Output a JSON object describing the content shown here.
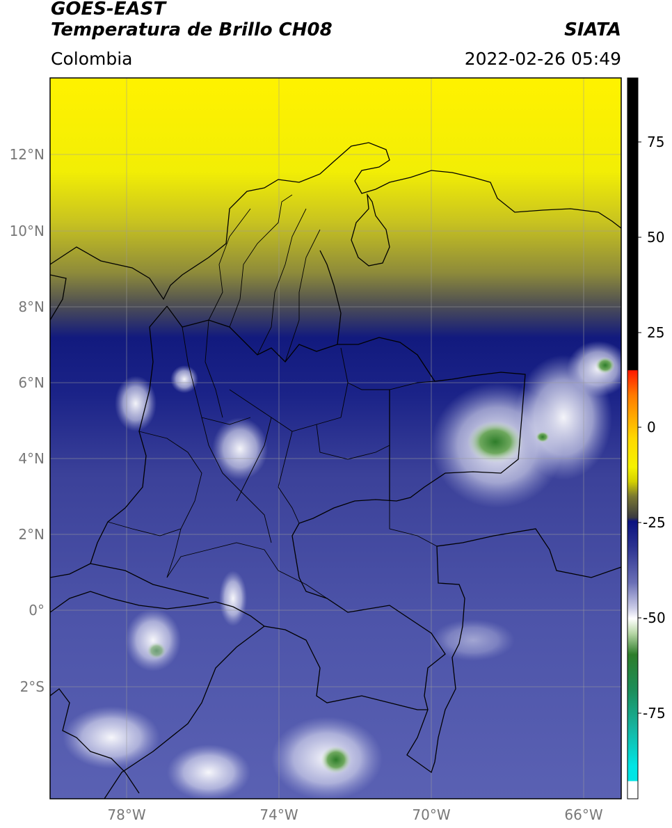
{
  "header": {
    "satellite": "GOES-EAST",
    "product": "Temperatura de Brillo CH08",
    "organization": "SIATA",
    "region": "Colombia",
    "datetime": "2022-02-26 05:49"
  },
  "map": {
    "lon_range": [
      -79.8,
      -64.9
    ],
    "lat_range": [
      -4.9,
      14.1
    ],
    "lat_ticks": [
      {
        "value": 12,
        "label": "12°N"
      },
      {
        "value": 10,
        "label": "10°N"
      },
      {
        "value": 8,
        "label": "8°N"
      },
      {
        "value": 6,
        "label": "6°N"
      },
      {
        "value": 4,
        "label": "4°N"
      },
      {
        "value": 2,
        "label": "2°N"
      },
      {
        "value": 0,
        "label": "0°"
      },
      {
        "value": -2,
        "label": "2°S"
      }
    ],
    "lon_ticks": [
      {
        "value": -78,
        "label": "78°W"
      },
      {
        "value": -74,
        "label": "74°W"
      },
      {
        "value": -70,
        "label": "70°W"
      },
      {
        "value": -66,
        "label": "66°W"
      }
    ],
    "grid": true
  },
  "colorbar": {
    "range": [
      -95,
      90
    ],
    "ticks": [
      {
        "value": 75,
        "label": "75"
      },
      {
        "value": 50,
        "label": "50"
      },
      {
        "value": 25,
        "label": "25"
      },
      {
        "value": 0,
        "label": "0"
      },
      {
        "value": -25,
        "label": "-25"
      },
      {
        "value": -50,
        "label": "-50"
      },
      {
        "value": -75,
        "label": "-75"
      }
    ],
    "colors": {
      "warm_yellow": "#f5f200",
      "olive": "#7c7a30",
      "navy": "#101a80",
      "slate_blue": "#4a50a8",
      "white": "#ffffff",
      "green": "#2e7d2a",
      "cyan": "#00e5e5",
      "red": "#ff1a00",
      "black": "#000000"
    }
  }
}
